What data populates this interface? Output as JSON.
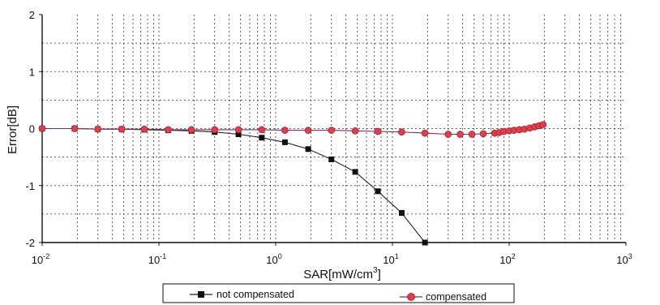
{
  "chart_data": {
    "type": "line",
    "title": "",
    "xlabel": "SAR[mW/cm",
    "xlabel_sup": "3",
    "xlabel_end": "]",
    "ylabel": "Error[dB]",
    "xscale": "log",
    "xlim": [
      0.01,
      1000
    ],
    "ylim": [
      -2,
      2
    ],
    "grid": true,
    "legend_position": "bottom",
    "x_ticks": [
      {
        "base": "10",
        "exp": "-2"
      },
      {
        "base": "10",
        "exp": "-1"
      },
      {
        "base": "10",
        "exp": "0"
      },
      {
        "base": "10",
        "exp": "1"
      },
      {
        "base": "10",
        "exp": "2"
      },
      {
        "base": "10",
        "exp": "3"
      }
    ],
    "y_ticks": [
      "2",
      "1",
      "0",
      "-1",
      "-2"
    ],
    "series": [
      {
        "name": "not compensated",
        "marker": "square",
        "color": "#111111",
        "line_color": "#222222",
        "x": [
          0.01,
          0.019,
          0.03,
          0.048,
          0.075,
          0.12,
          0.19,
          0.3,
          0.48,
          0.76,
          1.2,
          1.9,
          3.0,
          4.8,
          7.5,
          12,
          19
        ],
        "y": [
          0.0,
          0.0,
          -0.01,
          -0.01,
          -0.02,
          -0.03,
          -0.04,
          -0.06,
          -0.1,
          -0.16,
          -0.24,
          -0.36,
          -0.54,
          -0.76,
          -1.1,
          -1.48,
          -2.0
        ]
      },
      {
        "name": "compensated",
        "marker": "circle",
        "color": "#d9404a",
        "line_color": "#7a2a6e",
        "x": [
          0.01,
          0.019,
          0.03,
          0.048,
          0.075,
          0.12,
          0.19,
          0.3,
          0.48,
          0.76,
          1.2,
          1.9,
          3.0,
          4.8,
          7.5,
          12,
          19,
          30,
          38,
          48,
          60,
          75,
          82,
          90,
          100,
          110,
          122,
          135,
          150,
          165,
          180,
          195
        ],
        "y": [
          0.0,
          0.0,
          -0.01,
          -0.01,
          -0.01,
          -0.02,
          -0.02,
          -0.02,
          -0.02,
          -0.02,
          -0.03,
          -0.03,
          -0.03,
          -0.04,
          -0.05,
          -0.06,
          -0.08,
          -0.1,
          -0.1,
          -0.1,
          -0.09,
          -0.08,
          -0.07,
          -0.05,
          -0.04,
          -0.03,
          -0.02,
          -0.01,
          0.01,
          0.03,
          0.05,
          0.07
        ]
      }
    ]
  }
}
